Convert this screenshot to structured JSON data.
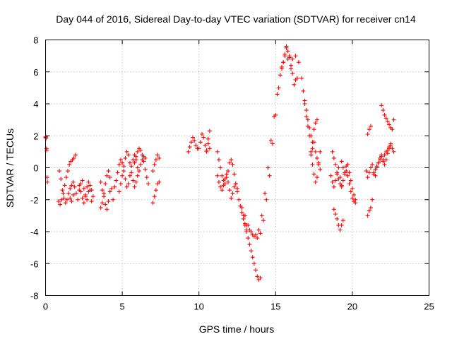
{
  "chart_data": {
    "type": "scatter",
    "title": "Day 044 of 2016, Sidereal Day-to-day VTEC variation (SDTVAR) for receiver cn14",
    "xlabel": "GPS time / hours",
    "ylabel": "SDTVAR / TECUs",
    "xlim": [
      0,
      25
    ],
    "ylim": [
      -8,
      8
    ],
    "xticks": [
      0,
      5,
      10,
      15,
      20,
      25
    ],
    "yticks": [
      -8,
      -6,
      -4,
      -2,
      0,
      2,
      4,
      6,
      8
    ],
    "xtick_labels": [
      "0",
      "5",
      "10",
      "15",
      "20",
      "25"
    ],
    "ytick_labels": [
      "-8",
      "-6",
      "-4",
      "-2",
      "0",
      "2",
      "4",
      "6",
      "8"
    ],
    "grid": true,
    "marker": "plus",
    "marker_color": "#ff0000",
    "series": [
      {
        "name": "SDTVAR",
        "segments": [
          {
            "x": [
              0.0,
              0.02,
              0.04,
              0.06,
              0.08,
              0.1,
              0.12
            ],
            "y": [
              1.9,
              1.95,
              1.85,
              1.2,
              1.1,
              -0.6,
              -0.9
            ]
          },
          {
            "x": [
              0.85,
              0.95,
              1.05,
              1.15,
              1.25,
              1.35,
              1.45,
              1.55,
              1.65,
              1.75,
              1.85,
              1.95
            ],
            "y": [
              -2.1,
              -2.3,
              -2.0,
              -1.6,
              -1.1,
              -0.6,
              -0.2,
              0.2,
              0.4,
              0.5,
              0.6,
              0.8
            ]
          },
          {
            "x": [
              0.9,
              1.0,
              1.1,
              1.2,
              1.3,
              1.4,
              1.5,
              1.6,
              1.7,
              1.8
            ],
            "y": [
              -0.2,
              -0.7,
              -1.4,
              -1.9,
              -2.2,
              -2.0,
              -1.6,
              -1.3,
              -1.1,
              -0.9
            ]
          },
          {
            "x": [
              1.6,
              1.7,
              1.8,
              1.9,
              2.0,
              2.1,
              2.2,
              2.3,
              2.4,
              2.5,
              2.6,
              2.7,
              2.8,
              2.9,
              3.0,
              3.1
            ],
            "y": [
              -1.9,
              -2.1,
              -1.7,
              -1.2,
              -1.6,
              -2.0,
              -1.4,
              -1.0,
              -0.8,
              -1.3,
              -1.8,
              -2.0,
              -1.5,
              -1.1,
              -1.4,
              -1.8
            ]
          },
          {
            "x": [
              2.2,
              2.3,
              2.4,
              2.5,
              2.6,
              2.7,
              2.8,
              2.9,
              3.0
            ],
            "y": [
              -1.1,
              -1.5,
              -1.9,
              -2.2,
              -1.7,
              -1.2,
              -0.9,
              -1.4,
              -2.1
            ]
          },
          {
            "x": [
              3.6,
              3.7,
              3.8,
              3.9,
              4.0,
              4.1,
              4.2,
              4.3,
              4.4
            ],
            "y": [
              -2.5,
              -2.2,
              -1.6,
              -1.0,
              -0.5,
              -0.2,
              -0.6,
              -1.3,
              -2.0
            ]
          },
          {
            "x": [
              3.6,
              3.7,
              3.8,
              3.9,
              4.0,
              4.1,
              4.2
            ],
            "y": [
              -0.9,
              -1.4,
              -1.8,
              -2.3,
              -2.6,
              -2.1,
              -1.5
            ]
          },
          {
            "x": [
              4.5,
              4.6,
              4.7,
              4.8,
              4.9,
              5.0,
              5.1,
              5.2,
              5.3,
              5.4,
              5.5,
              5.6,
              5.7,
              5.8,
              5.9,
              6.0
            ],
            "y": [
              -1.2,
              -0.8,
              -0.3,
              0.2,
              0.5,
              0.3,
              -0.2,
              -0.7,
              -1.2,
              -1.0,
              -0.5,
              0.1,
              0.5,
              0.8,
              0.5,
              0.0
            ]
          },
          {
            "x": [
              4.8,
              4.9,
              5.0,
              5.1,
              5.2,
              5.3,
              5.4,
              5.5,
              5.6,
              5.7,
              5.8,
              5.9
            ],
            "y": [
              -1.5,
              -1.0,
              -0.5,
              0.1,
              0.6,
              1.0,
              0.8,
              0.3,
              -0.3,
              -0.8,
              -1.2,
              -0.9
            ]
          },
          {
            "x": [
              5.8,
              5.9,
              6.0,
              6.1,
              6.2,
              6.3,
              6.4,
              6.5,
              6.6,
              6.7
            ],
            "y": [
              0.3,
              0.7,
              1.0,
              1.2,
              1.1,
              0.8,
              0.4,
              -0.1,
              -0.6,
              -1.0
            ]
          },
          {
            "x": [
              6.0,
              6.1,
              6.2,
              6.3,
              6.4,
              6.5
            ],
            "y": [
              -0.5,
              -0.2,
              0.2,
              0.5,
              0.7,
              0.6
            ]
          },
          {
            "x": [
              7.0,
              7.1,
              7.2,
              7.3,
              7.4
            ],
            "y": [
              -2.2,
              -1.8,
              -1.4,
              -1.0,
              -0.9
            ]
          },
          {
            "x": [
              7.0,
              7.1,
              7.2,
              7.3,
              7.4
            ],
            "y": [
              -0.2,
              0.2,
              0.5,
              0.8,
              0.6
            ]
          },
          {
            "x": [
              9.3,
              9.4,
              9.5,
              9.6,
              9.7,
              9.8,
              9.9
            ],
            "y": [
              1.0,
              1.3,
              1.6,
              1.9,
              1.7,
              1.4,
              1.2
            ]
          },
          {
            "x": [
              10.0,
              10.1,
              10.2,
              10.3,
              10.4,
              10.5,
              10.6,
              10.7
            ],
            "y": [
              1.2,
              1.6,
              2.1,
              1.9,
              1.4,
              1.0,
              1.8,
              2.3
            ]
          },
          {
            "x": [
              10.5,
              10.6,
              10.7
            ],
            "y": [
              1.1,
              1.5,
              1.2
            ]
          },
          {
            "x": [
              11.2,
              11.3,
              11.4,
              11.5,
              11.6,
              11.7,
              11.8,
              11.9,
              12.0,
              12.1,
              12.2,
              12.3,
              12.4,
              12.5,
              12.6,
              12.7,
              12.8,
              12.9,
              13.0,
              13.1
            ],
            "y": [
              1.0,
              0.5,
              0.0,
              -0.5,
              -0.8,
              -1.0,
              -0.6,
              -0.2,
              0.3,
              0.5,
              0.2,
              -0.4,
              -1.0,
              -1.5,
              -2.0,
              -2.4,
              -2.8,
              -3.2,
              -3.6,
              -3.9
            ]
          },
          {
            "x": [
              11.2,
              11.3,
              11.4,
              11.5,
              11.6,
              11.7,
              11.8,
              11.9,
              12.0,
              12.1,
              12.2,
              12.3,
              12.4,
              12.5
            ],
            "y": [
              -0.5,
              -0.9,
              -1.2,
              -1.4,
              -1.1,
              -0.7,
              -0.4,
              -0.9,
              -1.4,
              -1.9,
              -1.6,
              -1.2,
              -1.0,
              -1.3
            ]
          },
          {
            "x": [
              12.8,
              12.9,
              13.0,
              13.1,
              13.2,
              13.3,
              13.4,
              13.5,
              13.6,
              13.7,
              13.8,
              13.9,
              14.0
            ],
            "y": [
              -2.5,
              -3.0,
              -3.5,
              -4.0,
              -4.4,
              -4.8,
              -5.2,
              -5.6,
              -6.0,
              -6.4,
              -6.8,
              -7.0,
              -6.9
            ]
          },
          {
            "x": [
              13.0,
              13.2,
              13.4,
              13.6,
              13.8,
              14.0,
              14.2,
              14.4,
              14.6,
              14.8,
              15.0,
              15.2,
              15.4,
              15.6,
              15.8,
              16.0
            ],
            "y": [
              -3.0,
              -3.6,
              -4.0,
              -4.3,
              -4.4,
              -4.1,
              -3.3,
              -2.0,
              -0.5,
              1.5,
              3.3,
              5.0,
              6.3,
              7.0,
              6.8,
              6.2
            ]
          },
          {
            "x": [
              13.1,
              13.3,
              13.5,
              13.7,
              13.9,
              14.1,
              14.3,
              14.5,
              14.7,
              14.9,
              15.1,
              15.3,
              15.5,
              15.7,
              15.9,
              16.1,
              16.3,
              16.5
            ],
            "y": [
              -3.6,
              -3.9,
              -4.2,
              -4.2,
              -3.9,
              -3.0,
              -1.6,
              0.0,
              1.7,
              3.2,
              4.6,
              5.8,
              6.6,
              7.5,
              7.0,
              6.8,
              7.0,
              6.6
            ]
          },
          {
            "x": [
              15.4,
              15.5,
              15.6,
              15.7,
              15.8,
              15.9,
              16.0,
              16.1,
              16.2,
              16.3,
              16.4
            ],
            "y": [
              6.2,
              6.6,
              7.1,
              7.6,
              7.3,
              6.9,
              6.4,
              5.9,
              5.2,
              5.5,
              5.6
            ]
          },
          {
            "x": [
              16.7,
              16.8,
              16.9,
              17.0,
              17.1,
              17.2,
              17.3,
              17.4,
              17.5,
              17.6,
              17.7,
              17.8,
              17.9
            ],
            "y": [
              5.6,
              4.8,
              4.0,
              3.2,
              2.6,
              2.0,
              1.0,
              0.2,
              -0.4,
              -0.9,
              -0.6,
              0.3,
              1.0
            ]
          },
          {
            "x": [
              16.9,
              17.0,
              17.1,
              17.2,
              17.3,
              17.4,
              17.5,
              17.6,
              17.7
            ],
            "y": [
              4.2,
              3.6,
              3.0,
              2.5,
              2.0,
              1.6,
              2.4,
              2.8,
              3.0
            ]
          },
          {
            "x": [
              17.3,
              17.4,
              17.5,
              17.6,
              17.7,
              17.8,
              17.9
            ],
            "y": [
              0.8,
              1.2,
              1.6,
              1.0,
              0.6,
              0.2,
              -0.1
            ]
          },
          {
            "x": [
              18.6,
              18.7,
              18.8,
              18.9,
              19.0,
              19.1,
              19.2,
              19.3
            ],
            "y": [
              -0.5,
              -0.9,
              -1.2,
              -0.8,
              -0.4,
              0.0,
              -0.6,
              -1.1
            ]
          },
          {
            "x": [
              18.7,
              18.8,
              18.9,
              19.0,
              19.1,
              19.2,
              19.3,
              19.4,
              19.5,
              19.6,
              19.7,
              19.8,
              19.9,
              20.0,
              20.1,
              20.2
            ],
            "y": [
              1.0,
              0.6,
              0.2,
              -0.3,
              -0.7,
              -1.0,
              -1.2,
              -0.8,
              -0.3,
              0.1,
              -0.5,
              -1.0,
              -1.5,
              -1.9,
              -2.1,
              -2.2
            ]
          },
          {
            "x": [
              19.3,
              19.4,
              19.5,
              19.6,
              19.7,
              19.8,
              19.9,
              20.0,
              20.1,
              20.2
            ],
            "y": [
              0.4,
              0.0,
              -0.4,
              -0.2,
              0.2,
              -0.3,
              -0.8,
              -1.3,
              -1.7,
              -2.0
            ]
          },
          {
            "x": [
              18.8,
              18.9,
              19.0,
              19.1,
              19.2,
              19.3,
              19.4
            ],
            "y": [
              -2.6,
              -2.9,
              -3.2,
              -3.6,
              -3.9,
              -3.6,
              -3.3
            ]
          },
          {
            "x": [
              20.9,
              21.0,
              21.1,
              21.2,
              21.3,
              21.4,
              21.5
            ],
            "y": [
              -0.2,
              -0.6,
              -0.3,
              0.0,
              0.2,
              -0.3,
              -0.5
            ]
          },
          {
            "x": [
              21.0,
              21.1,
              21.2
            ],
            "y": [
              -3.0,
              -2.7,
              -2.5
            ]
          },
          {
            "x": [
              21.0,
              21.1,
              21.2
            ],
            "y": [
              2.1,
              2.4,
              2.6
            ]
          },
          {
            "x": [
              21.3
            ],
            "y": [
              -2.0
            ]
          },
          {
            "x": [
              21.4,
              21.5,
              21.6,
              21.7,
              21.8,
              21.9,
              22.0,
              22.1,
              22.2,
              22.3,
              22.4,
              22.5,
              22.6,
              22.7
            ],
            "y": [
              -0.4,
              -0.1,
              0.1,
              0.3,
              0.5,
              0.7,
              0.5,
              0.8,
              1.0,
              1.1,
              1.3,
              1.4,
              1.2,
              1.0
            ]
          },
          {
            "x": [
              21.6,
              21.7,
              21.8,
              21.9,
              22.0,
              22.1,
              22.2,
              22.3,
              22.4,
              22.5
            ],
            "y": [
              0.0,
              0.3,
              0.6,
              0.8,
              0.4,
              0.2,
              0.5,
              0.9,
              1.2,
              1.5
            ]
          },
          {
            "x": [
              21.9,
              22.0,
              22.1,
              22.2,
              22.3,
              22.4,
              22.5,
              22.6,
              22.7
            ],
            "y": [
              3.9,
              3.6,
              3.3,
              3.1,
              2.9,
              2.7,
              2.5,
              2.4,
              3.0
            ]
          }
        ]
      }
    ]
  }
}
